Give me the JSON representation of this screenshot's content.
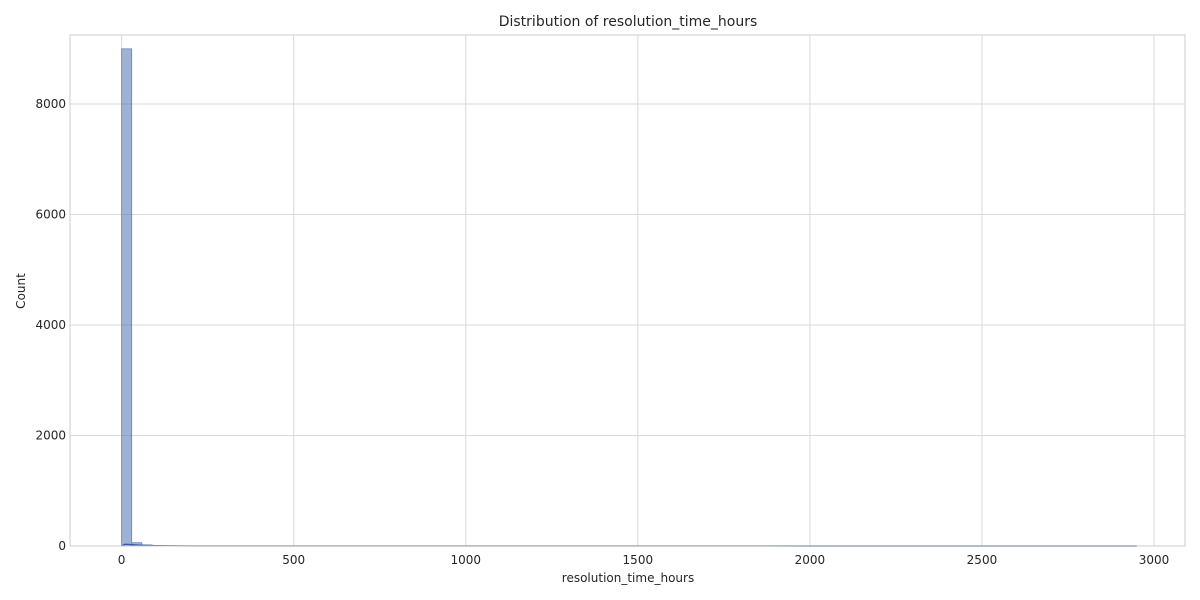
{
  "chart_data": {
    "type": "bar",
    "title": "Distribution of resolution_time_hours",
    "xlabel": "resolution_time_hours",
    "ylabel": "Count",
    "xlim": [
      -150,
      3090
    ],
    "ylim": [
      0,
      9250
    ],
    "x_ticks": [
      0,
      500,
      1000,
      1500,
      2000,
      2500,
      3000
    ],
    "y_ticks": [
      0,
      2000,
      4000,
      6000,
      8000
    ],
    "grid": true,
    "bins": {
      "start": 0,
      "width": 29.5,
      "counts": [
        9000,
        60,
        20,
        8,
        4,
        3,
        2,
        2,
        1,
        1
      ]
    },
    "kde": {
      "x": [
        0,
        10,
        25,
        50,
        100,
        200,
        400,
        800,
        1500,
        2000,
        2500,
        2950
      ],
      "y": [
        0,
        30,
        25,
        14,
        6,
        2,
        1,
        0.5,
        0.3,
        0.2,
        0.1,
        0
      ]
    },
    "colors": {
      "bar_fill": "#4c72b0",
      "bar_edge": "#4c72b0",
      "kde_line": "#3a57a8",
      "grid": "#d9d9d9",
      "spine": "#cccccc",
      "text": "#262626"
    }
  }
}
